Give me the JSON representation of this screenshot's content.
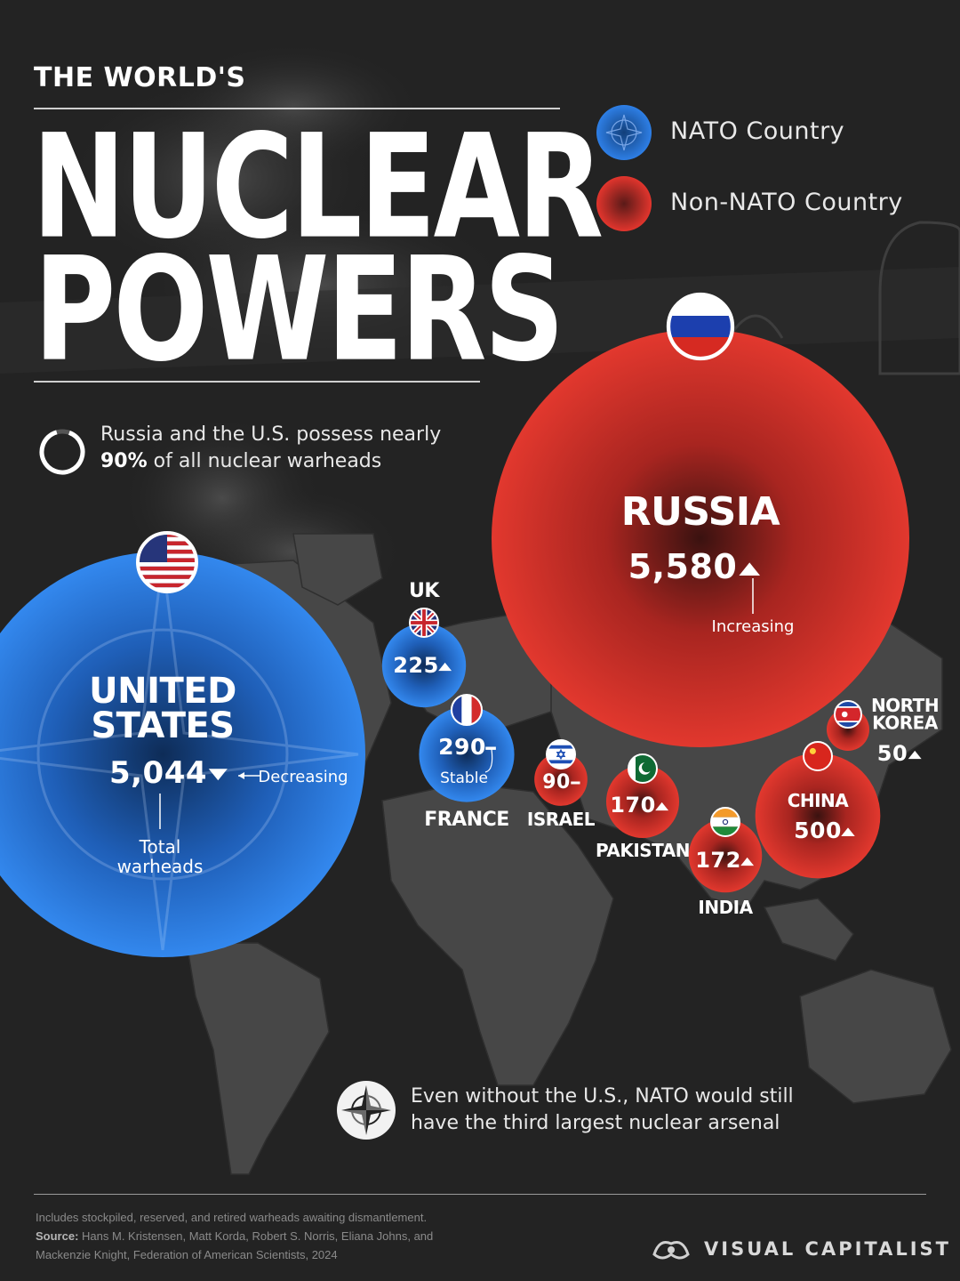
{
  "header": {
    "kicker": "THE WORLD'S",
    "title_line1": "NUCLEAR",
    "title_line2": "POWERS"
  },
  "legend": {
    "nato_label": "NATO Country",
    "non_nato_label": "Non-NATO Country",
    "nato_color": "#2a78de",
    "non_nato_color": "#d9322b"
  },
  "callout_top": {
    "line1": "Russia and the U.S. possess nearly",
    "highlight": "90%",
    "line2_rest": " of all nuclear warheads"
  },
  "callout_bottom": {
    "icon": "nato-compass-icon",
    "line1": "Even without the U.S., NATO would still",
    "line2": "have the third largest nuclear arsenal"
  },
  "chart_data": {
    "type": "bubble",
    "unit": "Total warheads",
    "countries": [
      {
        "name": "RUSSIA",
        "warheads": 5580,
        "label": "5,580",
        "group": "Non-NATO",
        "trend": "up",
        "annotation": "Increasing",
        "flag": "russia-flag-icon"
      },
      {
        "name": "UNITED STATES",
        "name_lines": [
          "UNITED",
          "STATES"
        ],
        "warheads": 5044,
        "label": "5,044",
        "group": "NATO",
        "trend": "down",
        "annotation": "Decreasing",
        "flag": "usa-flag-icon"
      },
      {
        "name": "CHINA",
        "warheads": 500,
        "label": "500",
        "group": "Non-NATO",
        "trend": "up",
        "flag": "china-flag-icon"
      },
      {
        "name": "FRANCE",
        "warheads": 290,
        "label": "290",
        "group": "NATO",
        "trend": "stable",
        "annotation": "Stable",
        "flag": "france-flag-icon"
      },
      {
        "name": "UK",
        "warheads": 225,
        "label": "225",
        "group": "NATO",
        "trend": "up",
        "flag": "uk-flag-icon"
      },
      {
        "name": "INDIA",
        "warheads": 172,
        "label": "172",
        "group": "Non-NATO",
        "trend": "up",
        "flag": "india-flag-icon"
      },
      {
        "name": "PAKISTAN",
        "warheads": 170,
        "label": "170",
        "group": "Non-NATO",
        "trend": "up",
        "flag": "pakistan-flag-icon"
      },
      {
        "name": "ISRAEL",
        "warheads": 90,
        "label": "90",
        "group": "Non-NATO",
        "trend": "stable",
        "flag": "israel-flag-icon"
      },
      {
        "name": "NORTH KOREA",
        "name_lines": [
          "NORTH",
          "KOREA"
        ],
        "warheads": 50,
        "label": "50",
        "group": "Non-NATO",
        "trend": "up",
        "flag": "north-korea-flag-icon"
      }
    ],
    "annotations": {
      "total_label_lines": [
        "Total",
        "warheads"
      ]
    }
  },
  "footer": {
    "note": "Includes stockpiled, reserved, and retired warheads awaiting dismantlement.",
    "source_label": "Source:",
    "source_text": "Hans M. Kristensen, Matt Korda, Robert S. Norris, Eliana Johns, and",
    "source_text2": "Mackenzie Knight, Federation of American Scientists, 2024",
    "brand": "VISUAL CAPITALIST"
  }
}
